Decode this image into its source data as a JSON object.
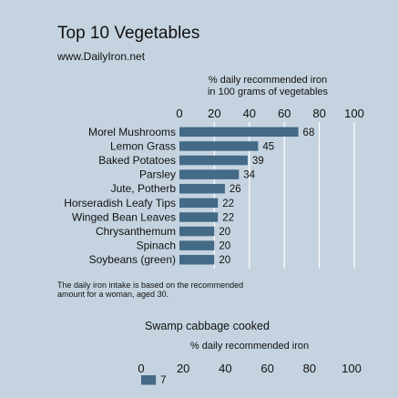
{
  "header": {
    "title": "Top 10 Vegetables",
    "source": "www.DailyIron.net"
  },
  "footnote": {
    "line1": "The daily iron intake is based on the recommended",
    "line2": "amount for a woman, aged 30."
  },
  "colors": {
    "background": "#c5d3e0",
    "bar": "#436a86",
    "gridline": "#ffffff"
  },
  "chart_data": [
    {
      "type": "bar",
      "orientation": "horizontal",
      "title": "",
      "xlabel_lines": [
        "% daily recommended iron",
        "in 100 grams of vegetables"
      ],
      "ylabel": "",
      "xlim": [
        0,
        100
      ],
      "ticks": [
        0,
        20,
        40,
        60,
        80,
        100
      ],
      "grid": true,
      "categories": [
        "Morel Mushrooms",
        "Lemon Grass",
        "Baked Potatoes",
        "Parsley",
        "Jute, Potherb",
        "Horseradish Leafy Tips",
        "Winged Bean Leaves",
        "Chrysanthemum",
        "Spinach",
        "Soybeans (green)"
      ],
      "values": [
        68,
        45,
        39,
        34,
        26,
        22,
        22,
        20,
        20,
        20
      ],
      "data_labels": [
        "68",
        "45",
        "39",
        "34",
        "26",
        "22",
        "22",
        "20",
        "20",
        "20"
      ]
    },
    {
      "type": "bar",
      "orientation": "horizontal",
      "title": "Swamp cabbage cooked",
      "xlabel_lines": [
        "% daily recommended iron"
      ],
      "xlim": [
        0,
        100
      ],
      "ticks": [
        0,
        20,
        40,
        60,
        80,
        100
      ],
      "grid": false,
      "categories": [
        ""
      ],
      "values": [
        7
      ],
      "data_labels": [
        "7"
      ]
    }
  ]
}
